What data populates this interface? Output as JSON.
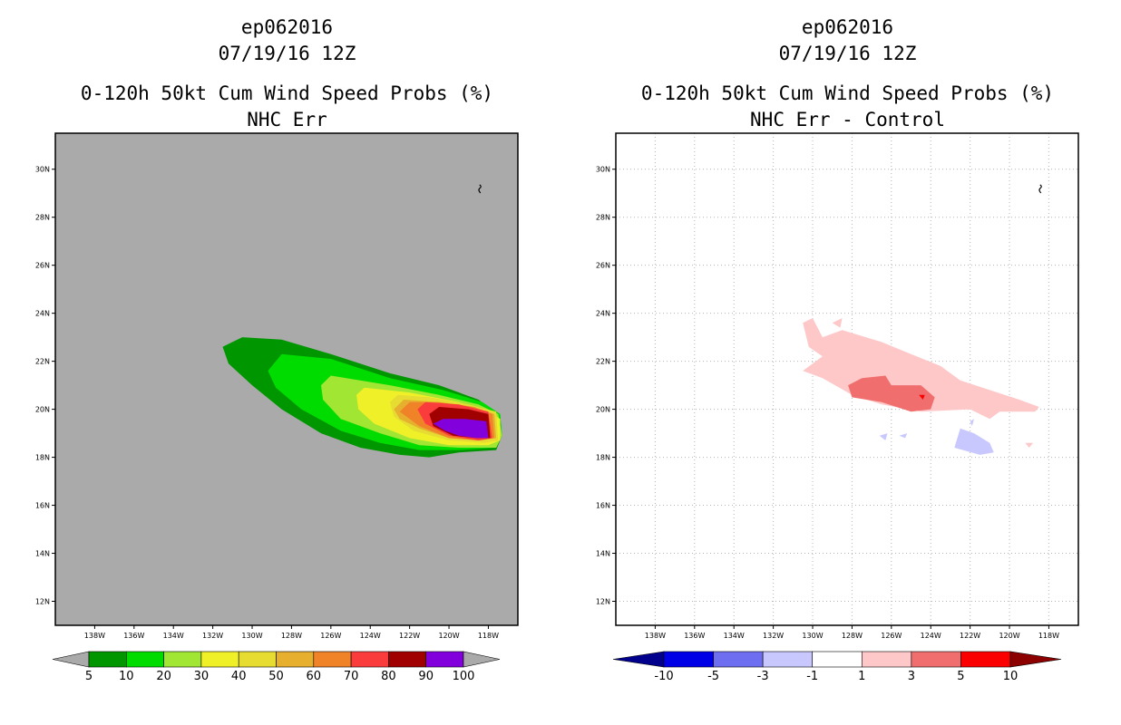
{
  "left": {
    "title_line1": "ep062016",
    "title_line2": "07/19/16 12Z",
    "title_line3": "0-120h 50kt Cum Wind Speed Probs (%)",
    "title_line4": "NHC Err"
  },
  "right": {
    "title_line1": "ep062016",
    "title_line2": "07/19/16 12Z",
    "title_line3": "0-120h 50kt Cum Wind Speed Probs (%)",
    "title_line4": "NHC Err - Control"
  },
  "chart_data": [
    {
      "type": "heatmap",
      "title": "0-120h 50kt Cum Wind Speed Probs (%) - NHC Err",
      "background": "#aaaaaa",
      "grid": false,
      "xlim": [
        -140,
        -116.5
      ],
      "ylim": [
        11,
        31.5
      ],
      "x_ticks": [
        "138W",
        "136W",
        "134W",
        "132W",
        "130W",
        "128W",
        "126W",
        "124W",
        "122W",
        "120W",
        "118W"
      ],
      "y_ticks": [
        "12N",
        "14N",
        "16N",
        "18N",
        "20N",
        "22N",
        "24N",
        "26N",
        "28N",
        "30N"
      ],
      "colorbar": {
        "levels": [
          "5",
          "10",
          "20",
          "30",
          "40",
          "50",
          "60",
          "70",
          "80",
          "90",
          "100"
        ],
        "colors": [
          "#009600",
          "#00dc00",
          "#a0e632",
          "#f0f028",
          "#e6dc32",
          "#e6af2d",
          "#f08228",
          "#fa3c3c",
          "#a00000",
          "#8200dc"
        ],
        "extend_colors": [
          "#aaaaaa",
          "#aaaaaa"
        ]
      },
      "contours": [
        {
          "level": 5,
          "color": "#009600",
          "points": [
            [
              -131.5,
              22.6
            ],
            [
              -130.5,
              23.0
            ],
            [
              -128.5,
              22.9
            ],
            [
              -126.0,
              22.3
            ],
            [
              -123.0,
              21.5
            ],
            [
              -120.5,
              21.0
            ],
            [
              -118.5,
              20.4
            ],
            [
              -117.5,
              19.8
            ],
            [
              -117.3,
              18.9
            ],
            [
              -117.6,
              18.3
            ],
            [
              -119.5,
              18.2
            ],
            [
              -121.0,
              18.0
            ],
            [
              -122.5,
              18.1
            ],
            [
              -124.5,
              18.4
            ],
            [
              -126.5,
              19.0
            ],
            [
              -128.5,
              20.0
            ],
            [
              -130.0,
              21.0
            ],
            [
              -131.2,
              21.9
            ]
          ]
        },
        {
          "level": 10,
          "color": "#00dc00",
          "points": [
            [
              -129.2,
              21.6
            ],
            [
              -128.5,
              22.3
            ],
            [
              -126.0,
              22.1
            ],
            [
              -123.0,
              21.3
            ],
            [
              -120.3,
              20.8
            ],
            [
              -118.3,
              20.3
            ],
            [
              -117.4,
              19.8
            ],
            [
              -117.3,
              18.9
            ],
            [
              -117.6,
              18.4
            ],
            [
              -119.5,
              18.3
            ],
            [
              -121.5,
              18.3
            ],
            [
              -123.5,
              18.6
            ],
            [
              -125.5,
              19.1
            ],
            [
              -127.5,
              20.0
            ],
            [
              -128.8,
              20.9
            ]
          ]
        },
        {
          "level": 20,
          "color": "#a0e632",
          "points": [
            [
              -126.5,
              21.0
            ],
            [
              -126.0,
              21.4
            ],
            [
              -123.0,
              21.0
            ],
            [
              -120.5,
              20.6
            ],
            [
              -118.5,
              20.2
            ],
            [
              -117.5,
              19.8
            ],
            [
              -117.3,
              18.9
            ],
            [
              -117.6,
              18.4
            ],
            [
              -119.5,
              18.4
            ],
            [
              -121.5,
              18.5
            ],
            [
              -123.5,
              19.0
            ],
            [
              -125.5,
              19.6
            ],
            [
              -126.4,
              20.4
            ]
          ]
        },
        {
          "level": 30,
          "color": "#f0f028",
          "points": [
            [
              -124.7,
              20.6
            ],
            [
              -124.3,
              20.9
            ],
            [
              -122.0,
              20.7
            ],
            [
              -119.5,
              20.3
            ],
            [
              -118.0,
              19.9
            ],
            [
              -117.4,
              19.6
            ],
            [
              -117.4,
              18.7
            ],
            [
              -118.0,
              18.5
            ],
            [
              -120.0,
              18.5
            ],
            [
              -122.0,
              18.8
            ],
            [
              -123.8,
              19.4
            ],
            [
              -124.6,
              20.0
            ]
          ]
        },
        {
          "level": 40,
          "color": "#e6dc32",
          "points": [
            [
              -123.0,
              20.3
            ],
            [
              -122.6,
              20.6
            ],
            [
              -121.0,
              20.5
            ],
            [
              -119.0,
              20.2
            ],
            [
              -117.6,
              19.9
            ],
            [
              -117.5,
              18.7
            ],
            [
              -118.2,
              18.6
            ],
            [
              -120.0,
              18.7
            ],
            [
              -121.8,
              19.1
            ],
            [
              -122.8,
              19.7
            ]
          ]
        },
        {
          "level": 50,
          "color": "#e6af2d",
          "points": [
            [
              -122.8,
              20.0
            ],
            [
              -122.3,
              20.4
            ],
            [
              -120.5,
              20.3
            ],
            [
              -118.7,
              20.1
            ],
            [
              -117.7,
              19.8
            ],
            [
              -117.6,
              18.8
            ],
            [
              -118.4,
              18.7
            ],
            [
              -120.0,
              18.8
            ],
            [
              -121.5,
              19.2
            ],
            [
              -122.5,
              19.6
            ]
          ]
        },
        {
          "level": 60,
          "color": "#f08228",
          "points": [
            [
              -122.5,
              19.9
            ],
            [
              -122.0,
              20.3
            ],
            [
              -120.5,
              20.3
            ],
            [
              -118.8,
              20.1
            ],
            [
              -117.8,
              19.8
            ],
            [
              -117.7,
              18.8
            ],
            [
              -118.5,
              18.7
            ],
            [
              -120.0,
              18.8
            ],
            [
              -121.5,
              19.3
            ]
          ]
        },
        {
          "level": 70,
          "color": "#fa3c3c",
          "points": [
            [
              -121.6,
              20.0
            ],
            [
              -121.2,
              20.3
            ],
            [
              -119.5,
              20.2
            ],
            [
              -118.0,
              19.9
            ],
            [
              -117.8,
              18.8
            ],
            [
              -118.5,
              18.7
            ],
            [
              -120.0,
              18.9
            ],
            [
              -121.2,
              19.4
            ]
          ]
        },
        {
          "level": 80,
          "color": "#a00000",
          "points": [
            [
              -121.0,
              19.8
            ],
            [
              -120.5,
              20.1
            ],
            [
              -119.0,
              20.0
            ],
            [
              -118.0,
              19.8
            ],
            [
              -117.9,
              18.8
            ],
            [
              -118.6,
              18.8
            ],
            [
              -119.8,
              18.9
            ],
            [
              -120.8,
              19.3
            ]
          ]
        },
        {
          "level": 90,
          "color": "#8200dc",
          "points": [
            [
              -120.8,
              19.4
            ],
            [
              -120.3,
              19.6
            ],
            [
              -119.2,
              19.6
            ],
            [
              -118.1,
              19.5
            ],
            [
              -118.0,
              18.8
            ],
            [
              -118.6,
              18.8
            ],
            [
              -119.5,
              18.9
            ],
            [
              -120.2,
              19.1
            ]
          ]
        }
      ]
    },
    {
      "type": "heatmap",
      "title": "0-120h 50kt Cum Wind Speed Probs (%) - NHC Err - Control",
      "background": "#ffffff",
      "grid": true,
      "xlim": [
        -140,
        -116.5
      ],
      "ylim": [
        11,
        31.5
      ],
      "x_ticks": [
        "138W",
        "136W",
        "134W",
        "132W",
        "130W",
        "128W",
        "126W",
        "124W",
        "122W",
        "120W",
        "118W"
      ],
      "y_ticks": [
        "12N",
        "14N",
        "16N",
        "18N",
        "20N",
        "22N",
        "24N",
        "26N",
        "28N",
        "30N"
      ],
      "colorbar": {
        "levels": [
          "-10",
          "-5",
          "-3",
          "-1",
          "1",
          "3",
          "5",
          "10"
        ],
        "colors": [
          "#0000e6",
          "#6e6ef0",
          "#c8c8ff",
          "#ffffff",
          "#ffc8c8",
          "#f06e6e",
          "#fa0000"
        ],
        "extend_colors": [
          "#00008c",
          "#8c0000"
        ]
      },
      "contours": [
        {
          "level": 1,
          "color": "#ffc8c8",
          "points": [
            [
              -130.5,
              23.6
            ],
            [
              -130.0,
              23.8
            ],
            [
              -129.5,
              23.0
            ],
            [
              -128.5,
              23.3
            ],
            [
              -126.5,
              22.8
            ],
            [
              -125.0,
              22.3
            ],
            [
              -123.5,
              21.8
            ],
            [
              -122.5,
              21.2
            ],
            [
              -121.0,
              20.8
            ],
            [
              -119.5,
              20.4
            ],
            [
              -118.5,
              20.1
            ],
            [
              -118.7,
              19.9
            ],
            [
              -120.5,
              19.9
            ],
            [
              -121.0,
              19.6
            ],
            [
              -122.0,
              20.0
            ],
            [
              -124.5,
              19.9
            ],
            [
              -126.5,
              20.2
            ],
            [
              -128.0,
              20.6
            ],
            [
              -129.5,
              21.3
            ],
            [
              -130.5,
              21.6
            ],
            [
              -129.5,
              22.2
            ],
            [
              -130.2,
              22.6
            ]
          ]
        },
        {
          "level": 1,
          "color": "#ffc8c8",
          "points": [
            [
              -129.0,
              23.6
            ],
            [
              -128.5,
              23.8
            ],
            [
              -128.6,
              23.4
            ]
          ]
        },
        {
          "level": 1,
          "color": "#ffc8c8",
          "points": [
            [
              -122.3,
              18.8
            ],
            [
              -121.8,
              18.9
            ],
            [
              -122.0,
              18.7
            ]
          ]
        },
        {
          "level": 1,
          "color": "#ffc8c8",
          "points": [
            [
              -119.2,
              18.6
            ],
            [
              -118.8,
              18.6
            ],
            [
              -119.0,
              18.4
            ]
          ]
        },
        {
          "level": 3,
          "color": "#f06e6e",
          "points": [
            [
              -128.2,
              21.0
            ],
            [
              -127.5,
              21.3
            ],
            [
              -126.3,
              21.4
            ],
            [
              -126.0,
              21.0
            ],
            [
              -124.5,
              21.0
            ],
            [
              -123.8,
              20.5
            ],
            [
              -124.0,
              20.0
            ],
            [
              -125.0,
              19.9
            ],
            [
              -126.5,
              20.3
            ],
            [
              -128.0,
              20.5
            ]
          ]
        },
        {
          "level": 5,
          "color": "#fa0000",
          "points": [
            [
              -124.6,
              20.6
            ],
            [
              -124.3,
              20.6
            ],
            [
              -124.4,
              20.4
            ]
          ]
        },
        {
          "level": -1,
          "color": "#c8c8ff",
          "points": [
            [
              -122.5,
              19.2
            ],
            [
              -121.8,
              19.0
            ],
            [
              -121.0,
              18.6
            ],
            [
              -120.8,
              18.2
            ],
            [
              -121.5,
              18.1
            ],
            [
              -122.8,
              18.4
            ]
          ]
        },
        {
          "level": -1,
          "color": "#c8c8ff",
          "points": [
            [
              -126.6,
              18.9
            ],
            [
              -126.2,
              19.0
            ],
            [
              -126.3,
              18.7
            ]
          ]
        },
        {
          "level": -1,
          "color": "#c8c8ff",
          "points": [
            [
              -125.6,
              18.9
            ],
            [
              -125.2,
              19.0
            ],
            [
              -125.3,
              18.8
            ]
          ]
        },
        {
          "level": -1,
          "color": "#c8c8ff",
          "points": [
            [
              -122.0,
              19.5
            ],
            [
              -121.8,
              19.6
            ],
            [
              -121.9,
              19.3
            ]
          ]
        }
      ]
    }
  ]
}
